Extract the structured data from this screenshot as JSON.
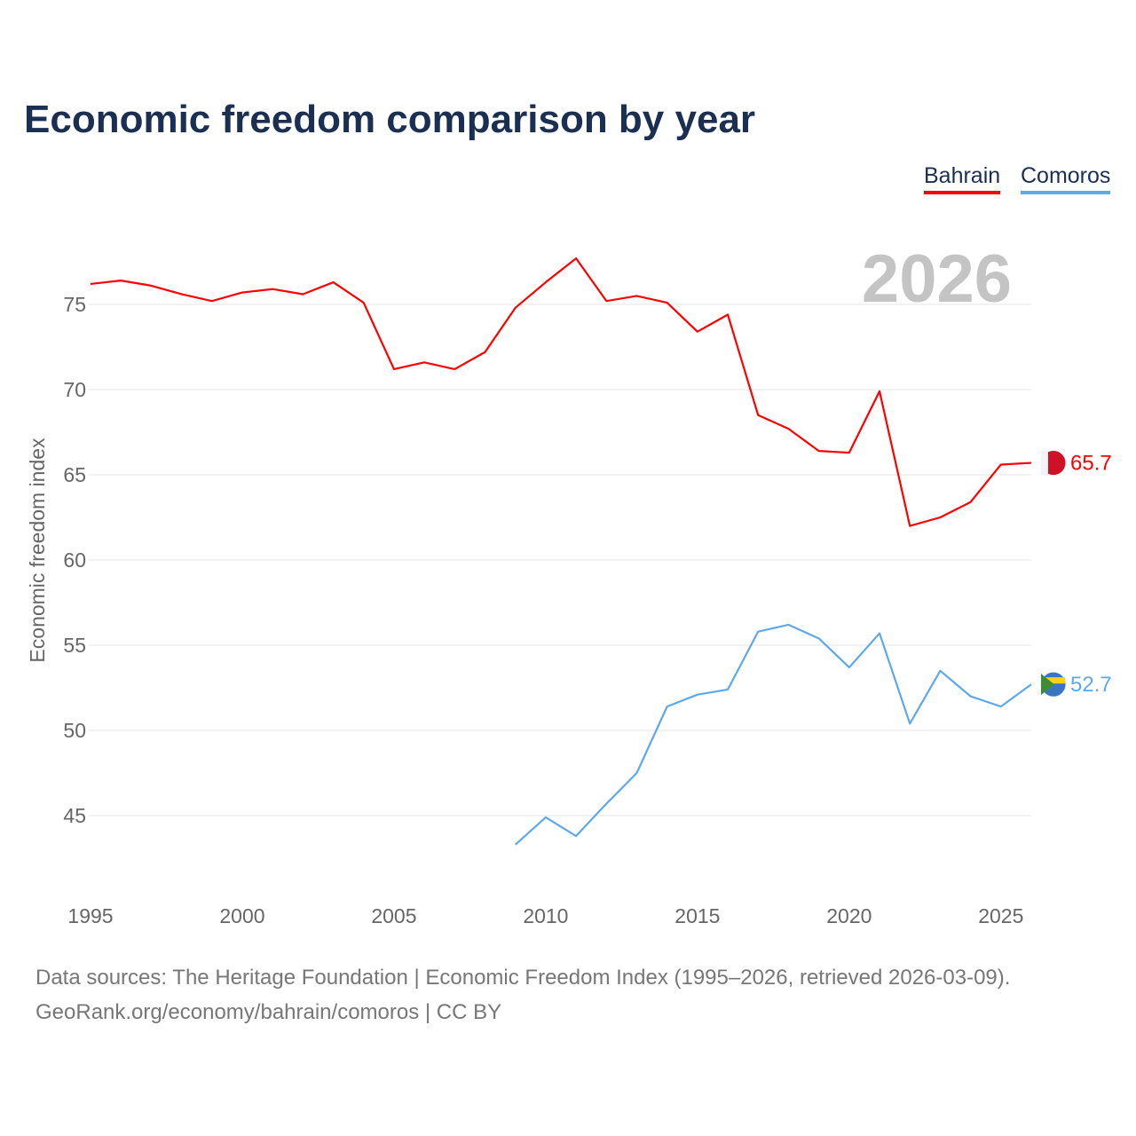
{
  "chart_data": {
    "type": "line",
    "title": "Economic freedom comparison by year",
    "xlabel": "",
    "ylabel": "Economic freedom index",
    "xlim": [
      1995,
      2026
    ],
    "ylim": [
      41.5,
      79
    ],
    "x_ticks": [
      1995,
      2000,
      2005,
      2010,
      2015,
      2020,
      2025
    ],
    "y_ticks": [
      45,
      50,
      55,
      60,
      65,
      70,
      75
    ],
    "grid": true,
    "legend_placement": "top-right",
    "year_label": "2026",
    "series": [
      {
        "name": "Bahrain",
        "color": "#ff0000",
        "end_label": "65.7",
        "x": [
          1995,
          1996,
          1997,
          1998,
          1999,
          2000,
          2001,
          2002,
          2003,
          2004,
          2005,
          2006,
          2007,
          2008,
          2009,
          2010,
          2011,
          2012,
          2013,
          2014,
          2015,
          2016,
          2017,
          2018,
          2019,
          2020,
          2021,
          2022,
          2023,
          2024,
          2025,
          2026
        ],
        "values": [
          76.2,
          76.4,
          76.1,
          75.6,
          75.2,
          75.7,
          75.9,
          75.6,
          76.3,
          75.1,
          71.2,
          71.6,
          71.2,
          72.2,
          74.8,
          76.3,
          77.7,
          75.2,
          75.5,
          75.1,
          73.4,
          74.4,
          68.5,
          67.7,
          66.4,
          66.3,
          69.9,
          62.0,
          62.5,
          63.4,
          65.6,
          65.7
        ]
      },
      {
        "name": "Comoros",
        "color": "#5ea8ec",
        "end_label": "52.7",
        "x": [
          2009,
          2010,
          2011,
          2012,
          2013,
          2014,
          2015,
          2016,
          2017,
          2018,
          2019,
          2020,
          2021,
          2022,
          2023,
          2024,
          2025,
          2026
        ],
        "values": [
          43.3,
          44.9,
          43.8,
          45.7,
          47.5,
          51.4,
          52.1,
          52.4,
          55.8,
          56.2,
          55.4,
          53.7,
          55.7,
          50.4,
          53.5,
          52.0,
          51.4,
          52.7
        ]
      }
    ]
  },
  "footer": {
    "line1": "Data sources: The Heritage Foundation | Economic Freedom Index (1995–2026, retrieved 2026-03-09).",
    "line2": "GeoRank.org/economy/bahrain/comoros | CC BY"
  }
}
